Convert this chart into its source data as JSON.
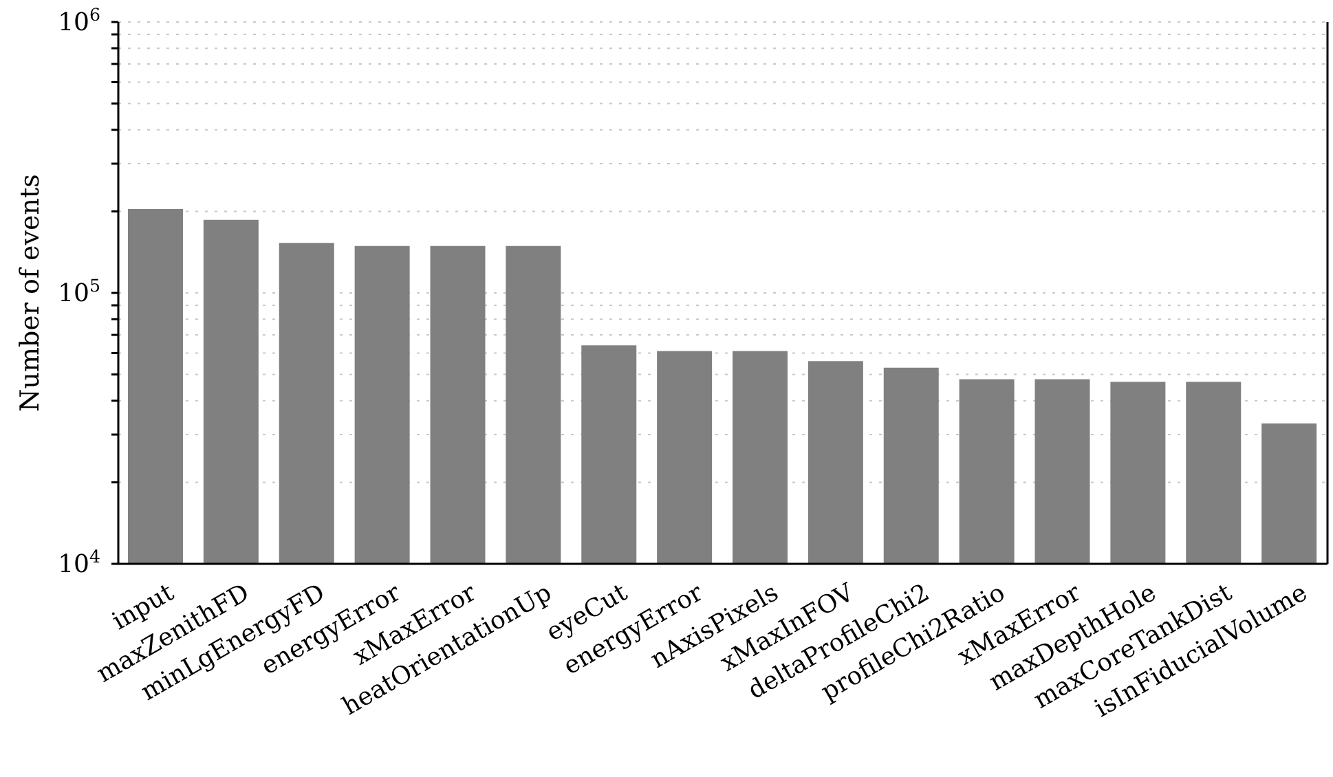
{
  "chart_data": {
    "type": "bar",
    "ylabel": "Number of events",
    "categories": [
      "input",
      "maxZenithFD",
      "minLgEnergyFD",
      "energyError",
      "xMaxError",
      "heatOrientationUp",
      "eyeCut",
      "energyError",
      "nAxisPixels",
      "xMaxInFOV",
      "deltaProfileChi2",
      "profileChi2Ratio",
      "xMaxError",
      "maxDepthHole",
      "maxCoreTankDist",
      "isInFiducialVolume"
    ],
    "values": [
      204000,
      186000,
      153000,
      149000,
      149000,
      149000,
      64000,
      61000,
      61000,
      56000,
      53000,
      48000,
      48000,
      47000,
      47000,
      33000
    ],
    "color": "#808080",
    "log": "y",
    "ylim": [
      10000,
      1000000
    ],
    "yticks": [
      {
        "value": 10000,
        "label": "10$^{4}$"
      },
      {
        "value": 20000,
        "label": null
      },
      {
        "value": 30000,
        "label": null
      },
      {
        "value": 40000,
        "label": null
      },
      {
        "value": 50000,
        "label": null
      },
      {
        "value": 60000,
        "label": null
      },
      {
        "value": 70000,
        "label": null
      },
      {
        "value": 80000,
        "label": null
      },
      {
        "value": 90000,
        "label": null
      },
      {
        "value": 100000,
        "label": "10$^{5}$"
      },
      {
        "value": 200000,
        "label": null
      },
      {
        "value": 300000,
        "label": null
      },
      {
        "value": 400000,
        "label": null
      },
      {
        "value": 500000,
        "label": null
      },
      {
        "value": 600000,
        "label": null
      },
      {
        "value": 700000,
        "label": null
      },
      {
        "value": 800000,
        "label": null
      },
      {
        "value": 900000,
        "label": null
      },
      {
        "value": 1000000,
        "label": "10$^{6}$"
      }
    ],
    "grid": "y"
  }
}
